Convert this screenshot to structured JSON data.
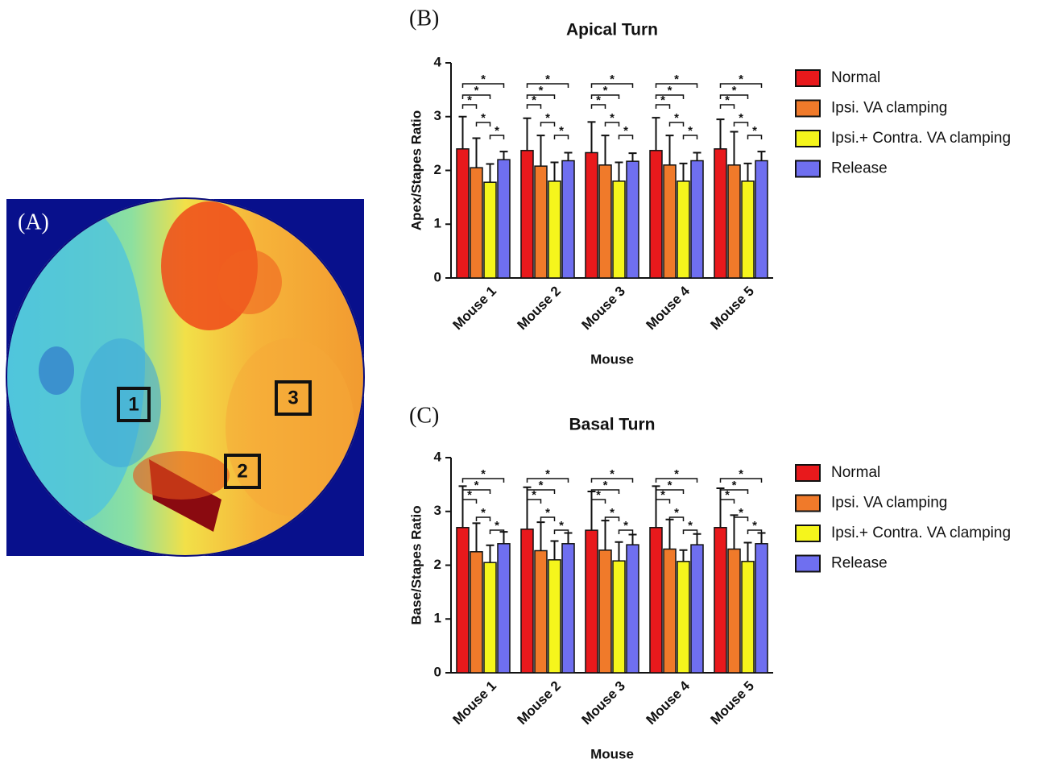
{
  "panel_a": {
    "label": "(A)",
    "regions": [
      "1",
      "2",
      "3"
    ]
  },
  "chart_data": [
    {
      "type": "bar",
      "panel_label": "(B)",
      "title": "Apical  Turn",
      "x_label": "Mouse",
      "y_label": "Apex/Stapes Ratio",
      "categories": [
        "Mouse 1",
        "Mouse 2",
        "Mouse 3",
        "Mouse 4",
        "Mouse 5"
      ],
      "series": [
        {
          "name": "Normal",
          "color": "#e8191c",
          "values": [
            2.4,
            2.37,
            2.33,
            2.37,
            2.4
          ],
          "errors": [
            0.6,
            0.6,
            0.57,
            0.61,
            0.55
          ]
        },
        {
          "name": "Ipsi. VA clamping",
          "color": "#f07a2a",
          "values": [
            2.05,
            2.08,
            2.1,
            2.1,
            2.1
          ],
          "errors": [
            0.55,
            0.57,
            0.55,
            0.55,
            0.62
          ]
        },
        {
          "name": "Ipsi.+ Contra. VA clamping",
          "color": "#f5f51c",
          "values": [
            1.78,
            1.8,
            1.8,
            1.8,
            1.8
          ],
          "errors": [
            0.34,
            0.35,
            0.35,
            0.33,
            0.33
          ]
        },
        {
          "name": "Release",
          "color": "#6f6ff0",
          "values": [
            2.2,
            2.18,
            2.17,
            2.18,
            2.18
          ],
          "errors": [
            0.15,
            0.15,
            0.15,
            0.15,
            0.17
          ]
        }
      ],
      "ylim": [
        0,
        4
      ],
      "yticks": [
        0,
        1,
        2,
        3,
        4
      ],
      "legend": "right",
      "significance_label": "*"
    },
    {
      "type": "bar",
      "panel_label": "(C)",
      "title": "Basal Turn",
      "x_label": "Mouse",
      "y_label": "Base/Stapes  Ratio",
      "categories": [
        "Mouse 1",
        "Mouse 2",
        "Mouse 3",
        "Mouse 4",
        "Mouse 5"
      ],
      "series": [
        {
          "name": "Normal",
          "color": "#e8191c",
          "values": [
            2.7,
            2.67,
            2.65,
            2.7,
            2.7
          ],
          "errors": [
            0.77,
            0.78,
            0.72,
            0.77,
            0.73
          ]
        },
        {
          "name": "Ipsi. VA clamping",
          "color": "#f07a2a",
          "values": [
            2.25,
            2.27,
            2.28,
            2.3,
            2.3
          ],
          "errors": [
            0.53,
            0.53,
            0.55,
            0.55,
            0.63
          ]
        },
        {
          "name": "Ipsi.+ Contra. VA clamping",
          "color": "#f5f51c",
          "values": [
            2.05,
            2.1,
            2.08,
            2.07,
            2.07
          ],
          "errors": [
            0.32,
            0.35,
            0.35,
            0.21,
            0.35
          ]
        },
        {
          "name": "Release",
          "color": "#6f6ff0",
          "values": [
            2.4,
            2.4,
            2.38,
            2.38,
            2.4
          ],
          "errors": [
            0.22,
            0.2,
            0.19,
            0.2,
            0.2
          ]
        }
      ],
      "ylim": [
        0,
        4
      ],
      "yticks": [
        0,
        1,
        2,
        3,
        4
      ],
      "legend": "right",
      "significance_label": "*"
    }
  ]
}
